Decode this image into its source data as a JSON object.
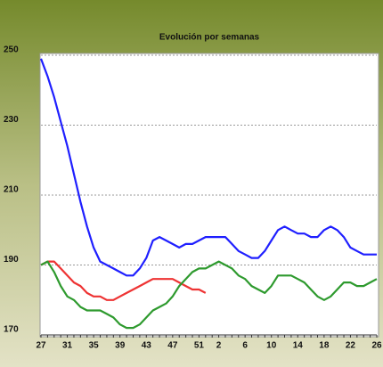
{
  "chart_data": {
    "type": "line",
    "title": "Evolución por semanas",
    "categories": [
      "27",
      null,
      null,
      null,
      "31",
      null,
      null,
      null,
      "35",
      null,
      null,
      null,
      "39",
      null,
      null,
      null,
      "43",
      null,
      null,
      null,
      "47",
      null,
      null,
      null,
      "51",
      null,
      null,
      "2",
      null,
      null,
      null,
      "6",
      null,
      null,
      null,
      "10",
      null,
      null,
      null,
      "14",
      null,
      null,
      null,
      "18",
      null,
      null,
      null,
      "22",
      null,
      null,
      null,
      "26"
    ],
    "series": [
      {
        "color": "#1f1fff",
        "values": [
          249,
          244,
          238,
          231,
          224,
          216,
          208,
          201,
          195,
          191,
          190,
          189,
          188,
          187,
          187,
          189,
          192,
          197,
          198,
          197,
          196,
          195,
          196,
          196,
          197,
          198,
          198,
          198,
          198,
          196,
          194,
          193,
          192,
          192,
          194,
          197,
          200,
          201,
          200,
          199,
          199,
          198,
          198,
          200,
          201,
          200,
          198,
          195,
          194,
          193,
          193,
          193
        ]
      },
      {
        "color": "#ee3333",
        "values": [
          190,
          191,
          191,
          189,
          187,
          185,
          184,
          182,
          181,
          181,
          180,
          180,
          181,
          182,
          183,
          184,
          185,
          186,
          186,
          186,
          186,
          185,
          184,
          183,
          183,
          182,
          null,
          null,
          null,
          null,
          null,
          null,
          null,
          null,
          null,
          null,
          null,
          null,
          null,
          null,
          null,
          null,
          null,
          null,
          null,
          null,
          null,
          null,
          null,
          null,
          null,
          null
        ]
      },
      {
        "color": "#2e9a2e",
        "values": [
          190,
          191,
          188,
          184,
          181,
          180,
          178,
          177,
          177,
          177,
          176,
          175,
          173,
          172,
          172,
          173,
          175,
          177,
          178,
          179,
          181,
          184,
          186,
          188,
          189,
          189,
          190,
          191,
          190,
          189,
          187,
          186,
          184,
          183,
          182,
          184,
          187,
          187,
          187,
          186,
          185,
          183,
          181,
          180,
          181,
          183,
          185,
          185,
          184,
          184,
          185,
          186
        ]
      }
    ],
    "ylim": [
      170,
      250
    ],
    "yticks": [
      170,
      190,
      210,
      230,
      250
    ],
    "grid": true
  }
}
